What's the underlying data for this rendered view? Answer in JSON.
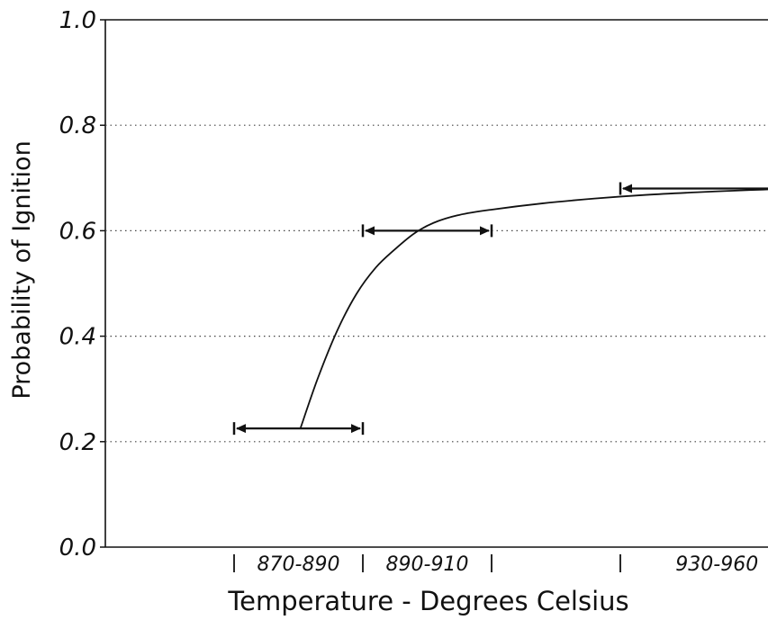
{
  "chart_data": {
    "type": "line",
    "xlabel": "Temperature - Degrees Celsius",
    "ylabel": "Probability of Ignition",
    "ylim": [
      0.0,
      1.0
    ],
    "y_ticks": [
      "0.0",
      "0.2",
      "0.4",
      "0.6",
      "0.8",
      "1.0"
    ],
    "y_tick_values": [
      0.0,
      0.2,
      0.4,
      0.6,
      0.8,
      1.0
    ],
    "xlim": [
      845,
      980
    ],
    "x_range_labels": [
      {
        "label": "870-890",
        "from": 870,
        "to": 890
      },
      {
        "label": "890-910",
        "from": 890,
        "to": 910
      },
      {
        "label": "930-960",
        "from": 930,
        "to": 960
      }
    ],
    "grid": "horizontal dotted at 0.2, 0.4, 0.6, 0.8",
    "error_bars": [
      {
        "range": "870-890",
        "x_from": 870,
        "x_to": 890,
        "y": 0.225
      },
      {
        "range": "890-910",
        "x_from": 890,
        "x_to": 910,
        "y": 0.6
      },
      {
        "range": "930-960",
        "x_from": 930,
        "x_to": 960,
        "y": 0.68
      }
    ],
    "curve": {
      "x": [
        880.3,
        883,
        886,
        889,
        892,
        895,
        898,
        901,
        905,
        910,
        918,
        926,
        934,
        942,
        950,
        957
      ],
      "y": [
        0.225,
        0.32,
        0.41,
        0.48,
        0.53,
        0.565,
        0.595,
        0.615,
        0.63,
        0.64,
        0.652,
        0.661,
        0.668,
        0.673,
        0.677,
        0.68
      ]
    }
  }
}
